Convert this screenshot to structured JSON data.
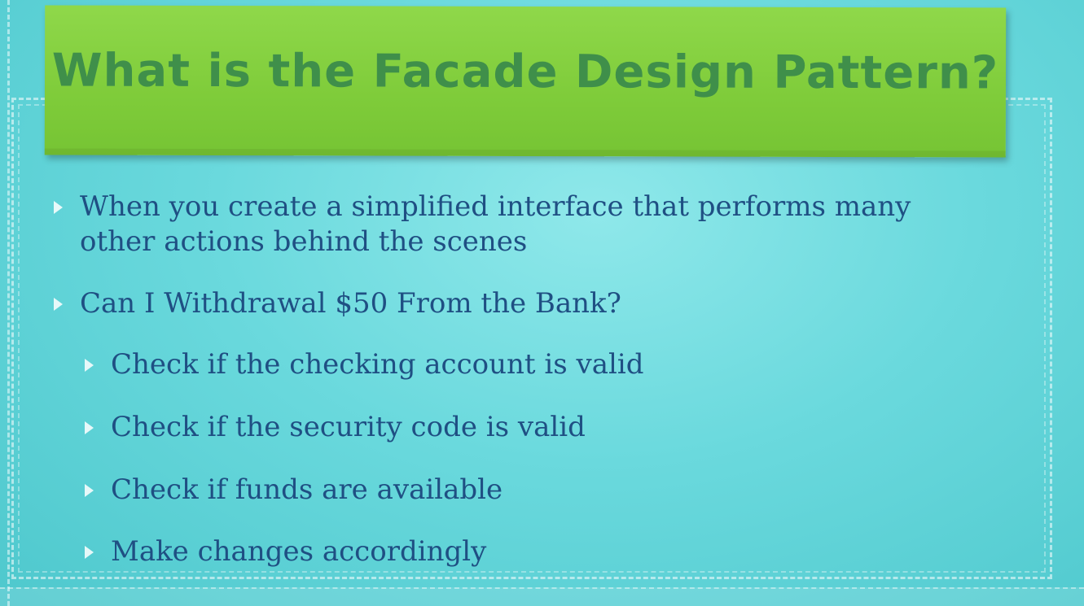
{
  "slide": {
    "title": "What is the Facade Design Pattern?",
    "bullets": [
      {
        "level": 1,
        "text": "When you create a simplified interface that performs many other actions behind the scenes"
      },
      {
        "level": 1,
        "text": "Can I Withdrawal $50 From the Bank?"
      },
      {
        "level": 2,
        "text": "Check if the checking account is valid"
      },
      {
        "level": 2,
        "text": "Check if the security code is valid"
      },
      {
        "level": 2,
        "text": "Check if funds are available"
      },
      {
        "level": 2,
        "text": "Make changes accordingly"
      }
    ]
  },
  "colors": {
    "background": "#6ad9dd",
    "banner": "#7fcc3a",
    "title_text": "#3f8f4a",
    "body_text": "#1f4f83"
  }
}
